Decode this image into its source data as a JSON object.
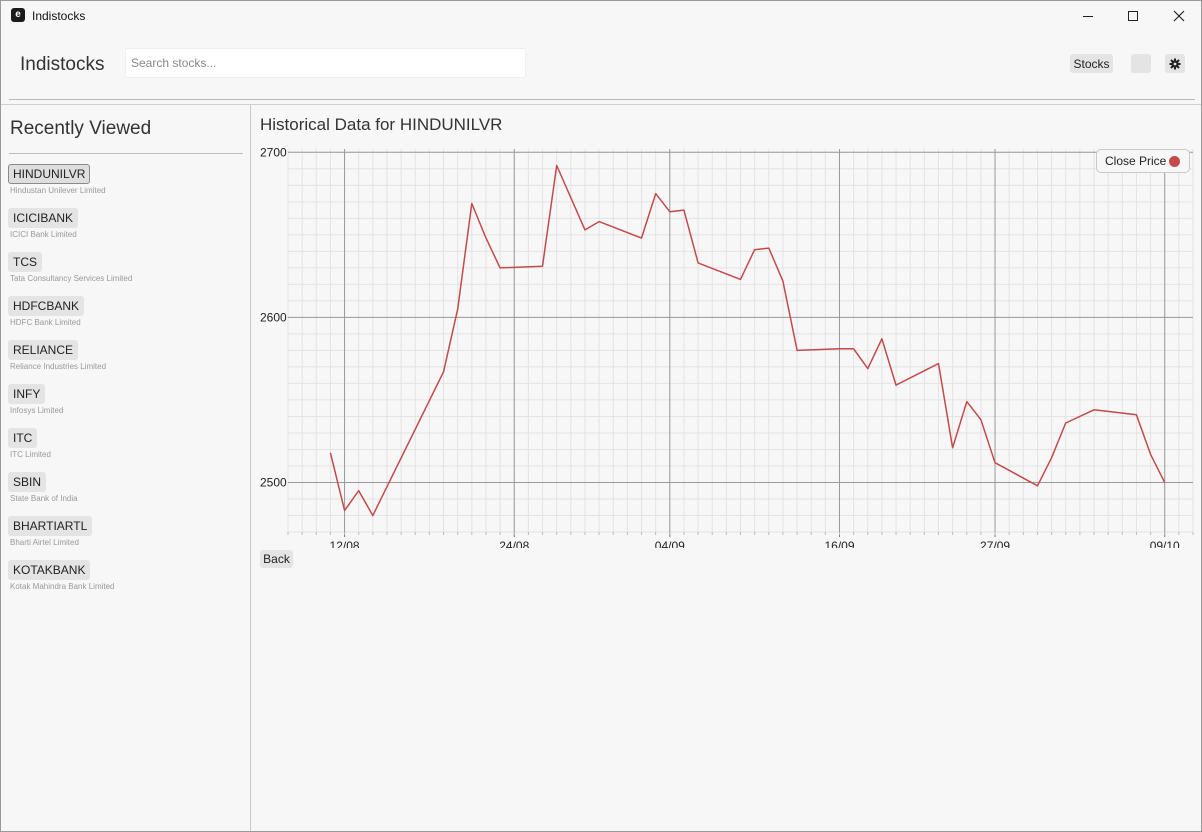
{
  "window": {
    "title": "Indistocks",
    "app_icon": "e"
  },
  "header": {
    "brand": "Indistocks",
    "search_placeholder": "Search stocks...",
    "stocks_button": "Stocks",
    "theme_icon": "theme-icon",
    "settings_icon": "gear-icon"
  },
  "sidebar": {
    "title": "Recently Viewed",
    "items": [
      {
        "symbol": "HINDUNILVR",
        "name": "Hindustan Unilever Limited",
        "active": true
      },
      {
        "symbol": "ICICIBANK",
        "name": "ICICI Bank Limited"
      },
      {
        "symbol": "TCS",
        "name": "Tata Consultancy Services Limited"
      },
      {
        "symbol": "HDFCBANK",
        "name": "HDFC Bank Limited"
      },
      {
        "symbol": "RELIANCE",
        "name": "Reliance Industries Limited"
      },
      {
        "symbol": "INFY",
        "name": "Infosys Limited"
      },
      {
        "symbol": "ITC",
        "name": "ITC Limited"
      },
      {
        "symbol": "SBIN",
        "name": "State Bank of India"
      },
      {
        "symbol": "BHARTIARTL",
        "name": "Bharti Airtel Limited"
      },
      {
        "symbol": "KOTAKBANK",
        "name": "Kotak Mahindra Bank Limited"
      }
    ]
  },
  "main": {
    "title": "Historical Data for HINDUNILVR",
    "back_label": "Back",
    "legend_label": "Close Price"
  },
  "colors": {
    "series": "#c44a4a"
  },
  "chart_data": {
    "type": "line",
    "title": "Historical Data for HINDUNILVR",
    "xlabel": "",
    "ylabel": "",
    "ylim": [
      2470,
      2702
    ],
    "xlim": [
      "2024-08-08",
      "2024-10-11"
    ],
    "yticks": [
      2500,
      2600,
      2700
    ],
    "xticks": [
      "12/08",
      "24/08",
      "04/09",
      "16/09",
      "27/09",
      "09/10"
    ],
    "xtick_dates": [
      "2024-08-12",
      "2024-08-24",
      "2024-09-04",
      "2024-09-16",
      "2024-09-27",
      "2024-10-09"
    ],
    "grid": true,
    "legend": "top-right",
    "series": [
      {
        "name": "Close Price",
        "points": [
          [
            "2024-08-11",
            2518
          ],
          [
            "2024-08-12",
            2483
          ],
          [
            "2024-08-13",
            2495
          ],
          [
            "2024-08-14",
            2480
          ],
          [
            "2024-08-19",
            2567
          ],
          [
            "2024-08-20",
            2605
          ],
          [
            "2024-08-21",
            2669
          ],
          [
            "2024-08-22",
            2648
          ],
          [
            "2024-08-23",
            2630
          ],
          [
            "2024-08-26",
            2631
          ],
          [
            "2024-08-27",
            2692
          ],
          [
            "2024-08-29",
            2653
          ],
          [
            "2024-08-30",
            2658
          ],
          [
            "2024-09-02",
            2648
          ],
          [
            "2024-09-03",
            2675
          ],
          [
            "2024-09-04",
            2664
          ],
          [
            "2024-09-05",
            2665
          ],
          [
            "2024-09-06",
            2633
          ],
          [
            "2024-09-09",
            2623
          ],
          [
            "2024-09-10",
            2641
          ],
          [
            "2024-09-11",
            2642
          ],
          [
            "2024-09-12",
            2622
          ],
          [
            "2024-09-13",
            2580
          ],
          [
            "2024-09-16",
            2581
          ],
          [
            "2024-09-17",
            2581
          ],
          [
            "2024-09-18",
            2569
          ],
          [
            "2024-09-19",
            2587
          ],
          [
            "2024-09-20",
            2559
          ],
          [
            "2024-09-23",
            2572
          ],
          [
            "2024-09-24",
            2521
          ],
          [
            "2024-09-25",
            2549
          ],
          [
            "2024-09-26",
            2538
          ],
          [
            "2024-09-27",
            2512
          ],
          [
            "2024-09-30",
            2498
          ],
          [
            "2024-10-01",
            2515
          ],
          [
            "2024-10-02",
            2536
          ],
          [
            "2024-10-04",
            2544
          ],
          [
            "2024-10-07",
            2541
          ],
          [
            "2024-10-08",
            2517
          ],
          [
            "2024-10-09",
            2500
          ]
        ]
      }
    ]
  }
}
